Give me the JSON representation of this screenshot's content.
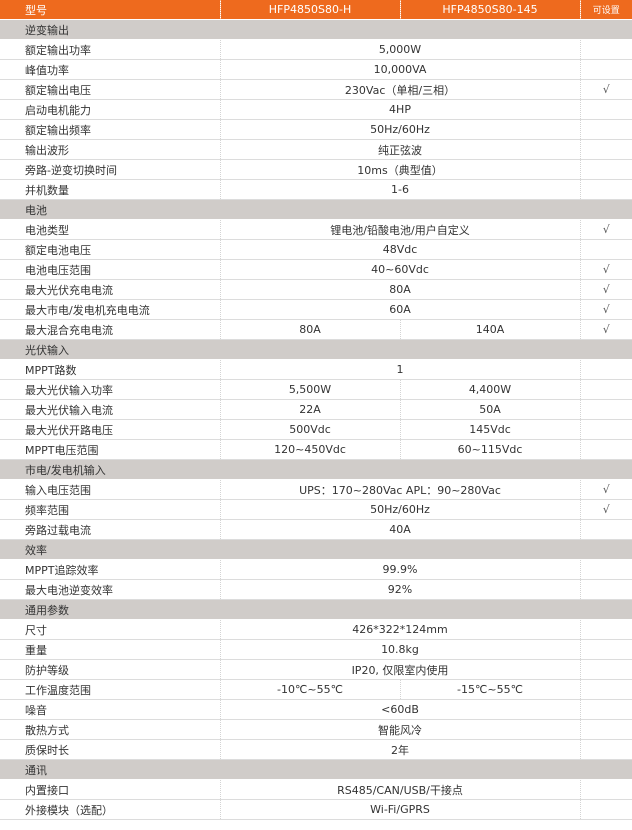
{
  "header": {
    "label": "型号",
    "model1": "HFP4850S80-H",
    "model2": "HFP4850S80-145",
    "settable": "可设置"
  },
  "check_mark": "√",
  "rows": [
    {
      "section": "逆变输出"
    },
    {
      "label": "额定输出功率",
      "value": "5,000W",
      "settable": false
    },
    {
      "label": "峰值功率",
      "value": "10,000VA",
      "settable": false
    },
    {
      "label": "额定输出电压",
      "value": "230Vac（单相/三相）",
      "settable": true
    },
    {
      "label": "启动电机能力",
      "value": "4HP",
      "settable": false
    },
    {
      "label": "额定输出频率",
      "value": "50Hz/60Hz",
      "settable": false
    },
    {
      "label": "输出波形",
      "value": "纯正弦波",
      "settable": false
    },
    {
      "label": "旁路-逆变切换时间",
      "value": "10ms（典型值）",
      "settable": false
    },
    {
      "label": "并机数量",
      "value": "1-6",
      "settable": false
    },
    {
      "section": "电池"
    },
    {
      "label": "电池类型",
      "value": "锂电池/铅酸电池/用户自定义",
      "settable": true
    },
    {
      "label": "额定电池电压",
      "value": "48Vdc",
      "settable": false
    },
    {
      "label": "电池电压范围",
      "value": "40~60Vdc",
      "settable": true
    },
    {
      "label": "最大光伏充电电流",
      "value": "80A",
      "settable": true
    },
    {
      "label": "最大市电/发电机充电电流",
      "value": "60A",
      "settable": true
    },
    {
      "label": "最大混合充电电流",
      "values": [
        "80A",
        "140A"
      ],
      "settable": true
    },
    {
      "section": "光伏输入"
    },
    {
      "label": "MPPT路数",
      "value": "1",
      "settable": false
    },
    {
      "label": "最大光伏输入功率",
      "values": [
        "5,500W",
        "4,400W"
      ],
      "settable": false
    },
    {
      "label": "最大光伏输入电流",
      "values": [
        "22A",
        "50A"
      ],
      "settable": false
    },
    {
      "label": "最大光伏开路电压",
      "values": [
        "500Vdc",
        "145Vdc"
      ],
      "settable": false
    },
    {
      "label": "MPPT电压范围",
      "values": [
        "120~450Vdc",
        "60~115Vdc"
      ],
      "settable": false
    },
    {
      "section": "市电/发电机输入"
    },
    {
      "label": "输入电压范围",
      "value": "UPS：170~280Vac  APL：90~280Vac",
      "settable": true
    },
    {
      "label": "频率范围",
      "value": "50Hz/60Hz",
      "settable": true
    },
    {
      "label": "旁路过载电流",
      "value": "40A",
      "settable": false
    },
    {
      "section": "效率"
    },
    {
      "label": "MPPT追踪效率",
      "value": "99.9%",
      "settable": false
    },
    {
      "label": "最大电池逆变效率",
      "value": "92%",
      "settable": false
    },
    {
      "section": "通用参数"
    },
    {
      "label": "尺寸",
      "value": "426*322*124mm",
      "settable": false
    },
    {
      "label": "重量",
      "value": "10.8kg",
      "settable": false
    },
    {
      "label": "防护等级",
      "value": "IP20, 仅限室内使用",
      "settable": false
    },
    {
      "label": "工作温度范围",
      "values": [
        "-10℃~55℃",
        "-15℃~55℃"
      ],
      "settable": false
    },
    {
      "label": "噪音",
      "value": "<60dB",
      "settable": false
    },
    {
      "label": "散热方式",
      "value": "智能风冷",
      "settable": false
    },
    {
      "label": "质保时长",
      "value": "2年",
      "settable": false
    },
    {
      "section": "通讯"
    },
    {
      "label": "内置接口",
      "value": "RS485/CAN/USB/干接点",
      "settable": false
    },
    {
      "label": "外接模块（选配）",
      "value": "Wi-Fi/GPRS",
      "settable": false
    }
  ]
}
